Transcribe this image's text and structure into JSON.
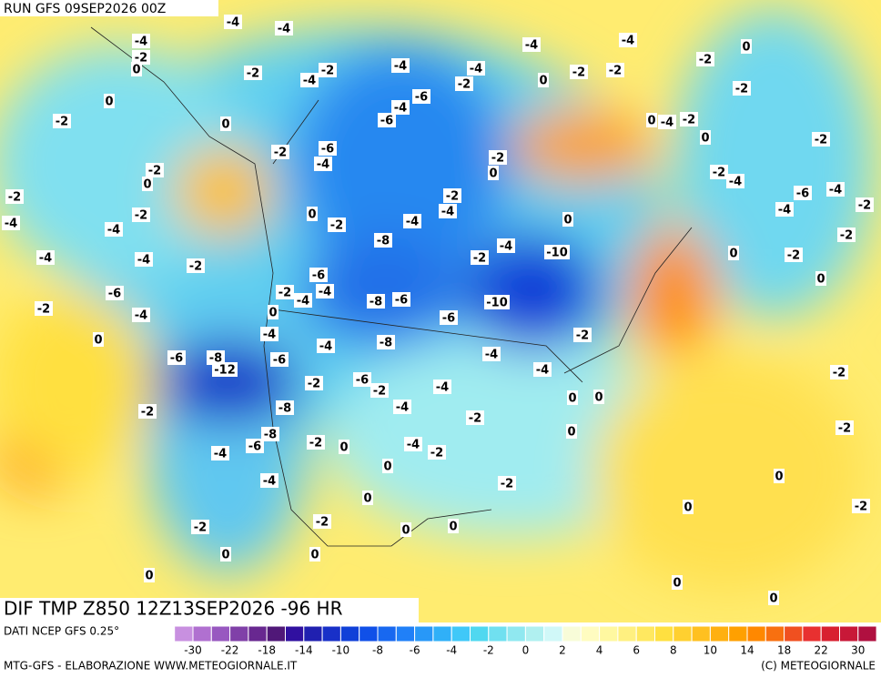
{
  "header": {
    "run": "RUN GFS 09SEP2026 00Z"
  },
  "map": {
    "title": "DIF TMP Z850 12Z13SEP2026 -96 HR",
    "contour_labels": [
      -4,
      -4,
      -4,
      -2,
      0,
      -2,
      -4,
      -2,
      -4,
      -4,
      -2,
      -6,
      -4,
      -6,
      0,
      -2,
      0,
      -2,
      -6,
      -4,
      -2,
      0,
      -2,
      -4,
      -2,
      -4,
      -4,
      -4,
      -2,
      -6,
      -2,
      -4,
      0,
      0,
      -2,
      -4,
      -8,
      -2,
      -4,
      -6,
      -2,
      -4,
      -4,
      0,
      -8,
      -6,
      -6,
      -10,
      -2,
      -4,
      -10,
      -2,
      -4,
      -4,
      -8,
      -4,
      -4,
      -6,
      -8,
      -12,
      -6,
      -2,
      -6,
      -2,
      -4,
      -4,
      -8,
      -2,
      -4,
      -6,
      -8,
      -2,
      0,
      -4,
      -2,
      -2,
      0,
      -4,
      0,
      -2,
      -2,
      -2,
      0,
      0,
      0,
      0,
      0,
      0,
      0,
      0,
      0,
      -2,
      -2,
      -2,
      0,
      -2,
      -2,
      -2,
      -4,
      -6,
      -4,
      0,
      -4,
      -2,
      -2,
      0,
      -2,
      -4,
      0,
      -2,
      -2,
      0,
      -4,
      -2,
      -2,
      -4,
      0,
      0,
      -2,
      0,
      0,
      0,
      0
    ]
  },
  "colorbar": {
    "source": "DATI NCEP GFS 0.25°",
    "colors": [
      "#c890e0",
      "#b070d0",
      "#9858c0",
      "#8040a8",
      "#682890",
      "#501878",
      "#3010a0",
      "#2020b0",
      "#1830c8",
      "#1040d8",
      "#1050e8",
      "#1868f0",
      "#2080f8",
      "#2898f8",
      "#30b0f8",
      "#40c8f8",
      "#50d8f0",
      "#70e0f0",
      "#90e8f0",
      "#b0f0f0",
      "#d0f8f8",
      "#f8fcd8",
      "#fffcc0",
      "#fff8a0",
      "#fff080",
      "#ffe860",
      "#ffe040",
      "#ffd030",
      "#ffc020",
      "#ffb010",
      "#ffa000",
      "#ff8800",
      "#f87010",
      "#f05020",
      "#e83030",
      "#d82030",
      "#c81838",
      "#b01040"
    ],
    "ticks": [
      -30,
      -22,
      -18,
      -14,
      -10,
      -8,
      -6,
      -4,
      -2,
      0,
      2,
      4,
      6,
      8,
      10,
      14,
      18,
      22,
      30
    ]
  },
  "footer": {
    "left": "MTG-GFS - ELABORAZIONE WWW.METEOGIORNALE.IT",
    "right": "(C) METEOGIORNALE"
  }
}
